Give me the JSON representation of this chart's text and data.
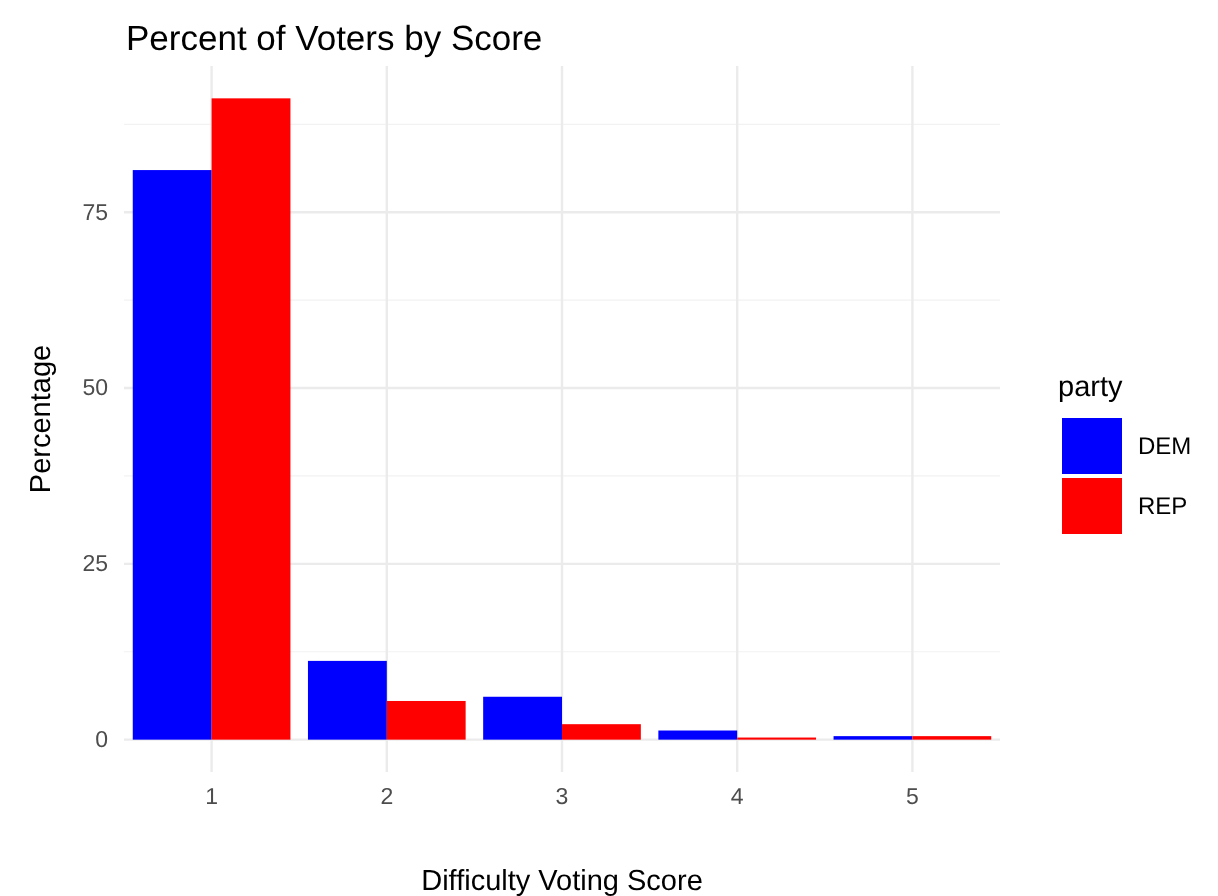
{
  "chart_data": {
    "type": "bar",
    "title": "Percent of Voters by Score",
    "xlabel": "Difficulty Voting Score",
    "ylabel": "Percentage",
    "legend_title": "party",
    "categories": [
      "1",
      "2",
      "3",
      "4",
      "5"
    ],
    "series": [
      {
        "name": "DEM",
        "color": "#0000ff",
        "values": [
          81.0,
          11.2,
          6.1,
          1.3,
          0.5
        ]
      },
      {
        "name": "REP",
        "color": "#ff0000",
        "values": [
          91.2,
          5.5,
          2.2,
          0.3,
          0.5
        ]
      }
    ],
    "ylim": [
      -4.6,
      95.8
    ],
    "yticks": [
      0,
      25,
      50,
      75
    ],
    "grid": true,
    "legend": "right"
  }
}
